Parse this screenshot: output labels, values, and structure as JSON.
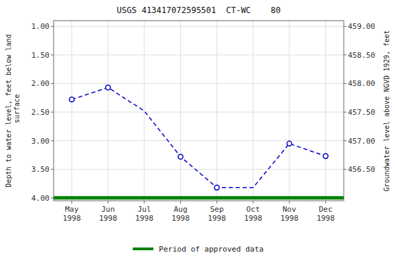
{
  "chart_data": {
    "type": "line",
    "title": "USGS 413417072595501  CT-WC    80",
    "categories": [
      "May\n1998",
      "Jun\n1998",
      "Jul\n1998",
      "Aug\n1998",
      "Sep\n1998",
      "Oct\n1998",
      "Nov\n1998",
      "Dec\n1998"
    ],
    "series": [
      {
        "type": "line",
        "color": "#0000CC",
        "line_style": "dashed",
        "marker": "none",
        "values": [
          2.28,
          2.07,
          2.48,
          3.28,
          3.82,
          3.82,
          3.05,
          3.27
        ]
      },
      {
        "type": "scatter",
        "color": "#0000CC",
        "marker": "circle",
        "values": [
          2.28,
          2.07,
          null,
          3.28,
          3.82,
          null,
          3.05,
          3.27
        ]
      }
    ],
    "hline": {
      "name": "Period of approved data",
      "value": 4.0,
      "color": "#008000"
    },
    "ylabel": "Depth to water level, feet below land\n surface",
    "y2label": "Groundwater level above NGVD 1929, feet",
    "ylim": [
      4.05,
      0.9
    ],
    "yticks": [
      {
        "value": 1.0,
        "label": "1.00"
      },
      {
        "value": 1.5,
        "label": "1.50"
      },
      {
        "value": 2.0,
        "label": "2.00"
      },
      {
        "value": 2.5,
        "label": "2.50"
      },
      {
        "value": 3.0,
        "label": "3.00"
      },
      {
        "value": 3.5,
        "label": "3.50"
      },
      {
        "value": 4.0,
        "label": "4.00"
      }
    ],
    "y2lim": [
      455.95,
      459.1
    ],
    "y2ticks": [
      {
        "value": 456.5,
        "label": "456.50"
      },
      {
        "value": 457.0,
        "label": "457.00"
      },
      {
        "value": 457.5,
        "label": "457.50"
      },
      {
        "value": 458.0,
        "label": "458.00"
      },
      {
        "value": 458.5,
        "label": "458.50"
      },
      {
        "value": 459.0,
        "label": "459.00"
      }
    ],
    "grid": true,
    "legend": "bottom"
  }
}
